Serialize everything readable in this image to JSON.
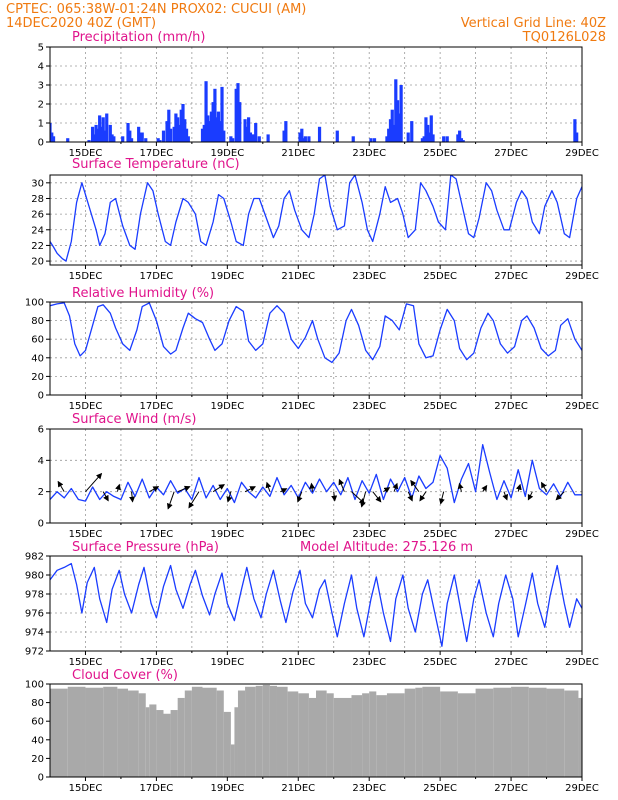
{
  "header": {
    "line1_left": "CPTEC:  065:38W-01:24N  PROX02: CUCUI (AM)",
    "line2_left": "14DEC2020 40Z (GMT)",
    "line2_right": "Vertical Grid Line: 40Z",
    "line3_right": "TQ0126L028"
  },
  "colors": {
    "header": "#f07a10",
    "title": "#e0148c",
    "series": "#1a3cff",
    "wind_arrow": "#000000",
    "cloud": "#a9a9a9",
    "grid": "#9a9a9a"
  },
  "x_axis": {
    "tick_labels": [
      "15DEC",
      "17DEC",
      "19DEC",
      "21DEC",
      "23DEC",
      "25DEC",
      "27DEC",
      "29DEC"
    ],
    "tick_days": [
      15,
      17,
      19,
      21,
      23,
      25,
      27,
      29
    ],
    "range_days": [
      14,
      29
    ],
    "minor_days": [
      16,
      18,
      20,
      22,
      24,
      26,
      28
    ]
  },
  "chart_data": [
    {
      "id": "precip",
      "type": "bar",
      "title": "Precipitation (mm/h)",
      "ylim": [
        0,
        5
      ],
      "yticks": [
        0,
        1,
        2,
        3,
        4,
        5
      ],
      "grid": true,
      "x_days": [
        14.0,
        14.05,
        14.1,
        14.5,
        15.1,
        15.2,
        15.25,
        15.3,
        15.35,
        15.4,
        15.45,
        15.5,
        15.55,
        15.6,
        15.7,
        15.75,
        15.8,
        16.05,
        16.2,
        16.25,
        16.3,
        16.5,
        16.55,
        16.6,
        16.7,
        17.05,
        17.1,
        17.2,
        17.3,
        17.35,
        17.4,
        17.5,
        17.55,
        17.6,
        17.65,
        17.7,
        17.75,
        17.8,
        17.85,
        17.9,
        18.3,
        18.35,
        18.4,
        18.45,
        18.5,
        18.55,
        18.6,
        18.65,
        18.7,
        18.75,
        18.8,
        18.85,
        18.9,
        19.1,
        19.15,
        19.25,
        19.3,
        19.35,
        19.5,
        19.55,
        19.6,
        19.65,
        19.7,
        19.75,
        19.8,
        19.9,
        20.15,
        20.6,
        20.65,
        21.05,
        21.1,
        21.15,
        21.2,
        21.3,
        21.6,
        22.1,
        22.55,
        23.05,
        23.15,
        23.5,
        23.55,
        23.6,
        23.65,
        23.7,
        23.75,
        23.8,
        23.85,
        23.9,
        24.1,
        24.2,
        24.5,
        24.55,
        24.6,
        24.65,
        24.7,
        24.75,
        24.8,
        25.1,
        25.2,
        25.5,
        25.55,
        25.6,
        25.65,
        28.8,
        28.85
      ],
      "values": [
        1.0,
        0.5,
        0.3,
        0.2,
        0.1,
        0.8,
        0.4,
        0.9,
        0.7,
        1.4,
        0.8,
        1.3,
        0.6,
        1.5,
        0.9,
        0.4,
        0.3,
        0.3,
        1.0,
        0.6,
        0.2,
        0.8,
        0.5,
        0.5,
        0.2,
        0.2,
        0.1,
        0.6,
        1.1,
        1.7,
        0.7,
        0.8,
        1.5,
        1.3,
        0.9,
        1.7,
        2.0,
        1.2,
        0.7,
        0.3,
        0.7,
        0.9,
        3.2,
        1.4,
        1.1,
        1.6,
        2.1,
        2.8,
        1.3,
        1.6,
        1.1,
        2.9,
        0.6,
        0.3,
        0.2,
        2.8,
        3.1,
        2.1,
        1.2,
        0.8,
        1.3,
        0.5,
        0.4,
        0.4,
        1.0,
        0.3,
        0.4,
        0.6,
        1.1,
        0.5,
        0.7,
        0.2,
        0.3,
        0.3,
        0.8,
        0.6,
        0.3,
        0.2,
        0.2,
        0.3,
        0.7,
        1.2,
        1.7,
        0.9,
        3.3,
        2.2,
        1.5,
        3.0,
        0.5,
        1.1,
        0.2,
        0.3,
        1.3,
        0.9,
        0.5,
        1.4,
        0.4,
        0.3,
        0.3,
        0.4,
        0.6,
        0.2,
        0.1,
        1.2,
        0.5
      ]
    },
    {
      "id": "temp",
      "type": "line",
      "title": "Surface Temperature (nC)",
      "ylim": [
        19.5,
        31
      ],
      "yticks": [
        20,
        22,
        24,
        26,
        28,
        30
      ],
      "grid": true,
      "x_days": [
        14.0,
        14.1,
        14.2,
        14.35,
        14.45,
        14.6,
        14.75,
        14.9,
        15.1,
        15.3,
        15.4,
        15.55,
        15.7,
        15.85,
        16.05,
        16.25,
        16.4,
        16.55,
        16.75,
        16.9,
        17.05,
        17.25,
        17.4,
        17.55,
        17.75,
        17.9,
        18.1,
        18.25,
        18.4,
        18.6,
        18.75,
        18.9,
        19.1,
        19.25,
        19.45,
        19.6,
        19.75,
        19.9,
        20.1,
        20.3,
        20.45,
        20.6,
        20.75,
        20.9,
        21.1,
        21.3,
        21.45,
        21.6,
        21.75,
        21.9,
        22.1,
        22.3,
        22.45,
        22.6,
        22.8,
        22.95,
        23.1,
        23.3,
        23.45,
        23.6,
        23.8,
        23.95,
        24.1,
        24.3,
        24.45,
        24.6,
        24.8,
        24.95,
        25.15,
        25.3,
        25.45,
        25.6,
        25.8,
        25.95,
        26.1,
        26.3,
        26.45,
        26.6,
        26.8,
        26.95,
        27.15,
        27.3,
        27.45,
        27.6,
        27.8,
        27.95,
        28.15,
        28.3,
        28.5,
        28.65,
        28.85,
        29.0
      ],
      "values": [
        22.5,
        21.8,
        21.0,
        20.3,
        20.0,
        22.5,
        27.5,
        30.0,
        27.0,
        24.0,
        22.0,
        23.5,
        27.5,
        28.0,
        24.5,
        22.0,
        21.5,
        26.0,
        30.0,
        29.0,
        26.0,
        22.5,
        22.0,
        25.0,
        28.0,
        27.5,
        26.0,
        22.5,
        22.0,
        25.0,
        28.5,
        28.0,
        25.0,
        22.5,
        22.0,
        26.0,
        28.0,
        28.0,
        25.5,
        23.0,
        24.5,
        28.0,
        29.0,
        26.5,
        24.0,
        23.0,
        26.0,
        30.5,
        31.0,
        27.0,
        24.0,
        24.5,
        30.0,
        31.0,
        27.5,
        24.0,
        22.5,
        26.0,
        29.5,
        27.5,
        28.0,
        26.0,
        23.0,
        24.0,
        30.0,
        29.0,
        27.0,
        25.0,
        24.0,
        31.0,
        30.5,
        27.5,
        23.5,
        23.0,
        25.5,
        30.0,
        29.0,
        26.5,
        24.0,
        24.0,
        27.5,
        29.0,
        28.0,
        25.0,
        23.5,
        27.0,
        29.0,
        27.5,
        23.5,
        23.0,
        28.0,
        29.5
      ]
    },
    {
      "id": "rh",
      "type": "line",
      "title": "Relative Humidity (%)",
      "ylim": [
        0,
        100
      ],
      "yticks": [
        0,
        20,
        40,
        60,
        80,
        100
      ],
      "grid": true,
      "x_days": [
        14.0,
        14.2,
        14.4,
        14.55,
        14.7,
        14.85,
        15.0,
        15.2,
        15.35,
        15.5,
        15.7,
        15.85,
        16.05,
        16.25,
        16.45,
        16.6,
        16.8,
        17.0,
        17.2,
        17.4,
        17.55,
        17.75,
        17.9,
        18.1,
        18.3,
        18.5,
        18.65,
        18.85,
        19.05,
        19.25,
        19.45,
        19.6,
        19.8,
        20.0,
        20.2,
        20.4,
        20.6,
        20.8,
        21.0,
        21.2,
        21.4,
        21.55,
        21.75,
        21.95,
        22.15,
        22.35,
        22.5,
        22.7,
        22.9,
        23.1,
        23.3,
        23.45,
        23.65,
        23.85,
        24.05,
        24.25,
        24.4,
        24.6,
        24.8,
        25.0,
        25.2,
        25.4,
        25.55,
        25.75,
        25.95,
        26.15,
        26.35,
        26.5,
        26.7,
        26.9,
        27.1,
        27.3,
        27.45,
        27.65,
        27.85,
        28.05,
        28.25,
        28.4,
        28.6,
        28.8,
        29.0
      ],
      "values": [
        96,
        98,
        99,
        85,
        55,
        42,
        48,
        75,
        95,
        97,
        88,
        72,
        55,
        48,
        70,
        95,
        99,
        80,
        52,
        44,
        48,
        72,
        88,
        82,
        78,
        60,
        48,
        55,
        80,
        95,
        90,
        58,
        48,
        55,
        88,
        96,
        88,
        60,
        50,
        62,
        80,
        60,
        40,
        35,
        45,
        80,
        92,
        75,
        48,
        38,
        52,
        85,
        80,
        70,
        98,
        96,
        55,
        40,
        42,
        70,
        92,
        80,
        50,
        38,
        45,
        72,
        88,
        80,
        55,
        45,
        52,
        80,
        85,
        72,
        50,
        42,
        48,
        75,
        82,
        60,
        48
      ]
    },
    {
      "id": "wind",
      "type": "line",
      "title": "Surface Wind (m/s)",
      "ylim": [
        0,
        6
      ],
      "yticks": [
        0,
        2,
        4,
        6
      ],
      "grid": true,
      "x_days": [
        14.0,
        14.2,
        14.4,
        14.6,
        14.8,
        15.0,
        15.2,
        15.4,
        15.6,
        15.8,
        16.0,
        16.2,
        16.4,
        16.6,
        16.8,
        17.0,
        17.2,
        17.4,
        17.6,
        17.8,
        18.0,
        18.2,
        18.4,
        18.6,
        18.8,
        19.0,
        19.2,
        19.4,
        19.6,
        19.8,
        20.0,
        20.2,
        20.4,
        20.6,
        20.8,
        21.0,
        21.2,
        21.4,
        21.6,
        21.8,
        22.0,
        22.2,
        22.4,
        22.6,
        22.8,
        23.0,
        23.2,
        23.4,
        23.6,
        23.8,
        24.0,
        24.2,
        24.4,
        24.6,
        24.8,
        25.0,
        25.2,
        25.4,
        25.6,
        25.8,
        26.0,
        26.2,
        26.4,
        26.6,
        26.8,
        27.0,
        27.2,
        27.4,
        27.6,
        27.8,
        28.0,
        28.2,
        28.4,
        28.6,
        28.8,
        29.0
      ],
      "values": [
        1.5,
        2.0,
        1.6,
        2.2,
        1.5,
        1.4,
        2.3,
        1.5,
        2.0,
        1.7,
        1.5,
        2.6,
        1.7,
        2.8,
        1.6,
        2.3,
        1.8,
        2.7,
        1.9,
        2.2,
        1.5,
        2.9,
        1.6,
        2.4,
        1.5,
        2.2,
        1.3,
        2.6,
        2.0,
        1.6,
        2.3,
        1.7,
        2.9,
        1.8,
        2.4,
        1.6,
        2.6,
        1.9,
        2.8,
        2.0,
        2.6,
        1.8,
        2.9,
        1.5,
        2.7,
        1.9,
        3.1,
        1.5,
        2.8,
        2.0,
        2.9,
        1.6,
        3.0,
        2.2,
        2.6,
        4.3,
        3.5,
        1.3,
        2.8,
        3.8,
        2.0,
        5.0,
        3.2,
        1.5,
        2.7,
        1.6,
        3.4,
        1.7,
        4.0,
        2.2,
        1.8,
        2.5,
        1.7,
        2.6,
        1.8,
        1.8
      ],
      "arrows": [
        {
          "day": 14.4,
          "u": -0.6,
          "v": 1.0
        },
        {
          "day": 15.0,
          "u": 1.6,
          "v": 1.8
        },
        {
          "day": 15.5,
          "u": 0.5,
          "v": -0.9
        },
        {
          "day": 15.9,
          "u": 0.2,
          "v": 0.7
        },
        {
          "day": 16.3,
          "u": 0.1,
          "v": -1.0
        },
        {
          "day": 16.8,
          "u": 0.9,
          "v": 0.5
        },
        {
          "day": 17.5,
          "u": -0.6,
          "v": -1.7
        },
        {
          "day": 17.6,
          "u": 1.2,
          "v": 0.5
        },
        {
          "day": 18.2,
          "u": -1.0,
          "v": -1.6
        },
        {
          "day": 18.6,
          "u": 1.1,
          "v": 0.7
        },
        {
          "day": 19.1,
          "u": -0.3,
          "v": -1.0
        },
        {
          "day": 19.5,
          "u": 1.0,
          "v": 0.5
        },
        {
          "day": 20.2,
          "u": -0.3,
          "v": 0.9
        },
        {
          "day": 20.5,
          "u": 0.6,
          "v": 0.3
        },
        {
          "day": 21.1,
          "u": -0.4,
          "v": -1.0
        },
        {
          "day": 21.4,
          "u": -0.1,
          "v": 0.8
        },
        {
          "day": 22.0,
          "u": 0.1,
          "v": -0.9
        },
        {
          "day": 22.3,
          "u": -0.5,
          "v": 1.2
        },
        {
          "day": 22.5,
          "u": 1.3,
          "v": -1.2
        },
        {
          "day": 22.9,
          "u": -0.4,
          "v": -1.5
        },
        {
          "day": 23.1,
          "u": 0.8,
          "v": -1.0
        },
        {
          "day": 23.4,
          "u": 0.6,
          "v": 0.4
        },
        {
          "day": 23.7,
          "u": 0.3,
          "v": 0.8
        },
        {
          "day": 24.1,
          "u": 0.4,
          "v": -0.9
        },
        {
          "day": 24.4,
          "u": -0.8,
          "v": 1.1
        },
        {
          "day": 24.6,
          "u": -0.6,
          "v": -0.9
        },
        {
          "day": 25.1,
          "u": -0.3,
          "v": -1.2
        },
        {
          "day": 25.6,
          "u": -0.2,
          "v": 0.8
        },
        {
          "day": 26.2,
          "u": 0.4,
          "v": 0.6
        },
        {
          "day": 26.8,
          "u": 0.3,
          "v": -0.8
        },
        {
          "day": 27.2,
          "u": 0.2,
          "v": 0.7
        },
        {
          "day": 27.6,
          "u": -0.4,
          "v": -0.8
        },
        {
          "day": 28.0,
          "u": -0.5,
          "v": 0.9
        },
        {
          "day": 28.5,
          "u": -0.8,
          "v": -0.8
        }
      ]
    },
    {
      "id": "pres",
      "type": "line",
      "title": "Surface Pressure (hPa)",
      "annotation": "Model Altitude: 275.126 m",
      "ylim": [
        972,
        982
      ],
      "yticks": [
        972,
        974,
        976,
        978,
        980,
        982
      ],
      "grid": true,
      "x_days": [
        14.0,
        14.2,
        14.4,
        14.6,
        14.75,
        14.9,
        15.05,
        15.25,
        15.4,
        15.6,
        15.75,
        15.95,
        16.1,
        16.3,
        16.5,
        16.65,
        16.85,
        17.0,
        17.2,
        17.4,
        17.55,
        17.75,
        17.95,
        18.1,
        18.3,
        18.5,
        18.65,
        18.85,
        19.0,
        19.2,
        19.4,
        19.55,
        19.75,
        19.95,
        20.1,
        20.3,
        20.5,
        20.65,
        20.85,
        21.05,
        21.2,
        21.4,
        21.6,
        21.75,
        21.95,
        22.1,
        22.3,
        22.5,
        22.65,
        22.85,
        23.05,
        23.2,
        23.4,
        23.6,
        23.75,
        23.95,
        24.1,
        24.3,
        24.5,
        24.65,
        24.85,
        25.05,
        25.2,
        25.4,
        25.6,
        25.75,
        25.95,
        26.1,
        26.3,
        26.5,
        26.65,
        26.85,
        27.05,
        27.2,
        27.4,
        27.6,
        27.75,
        27.95,
        28.1,
        28.3,
        28.5,
        28.65,
        28.85,
        29.0
      ],
      "values": [
        979.5,
        980.5,
        980.8,
        981.2,
        979.0,
        976.0,
        979.2,
        980.8,
        977.5,
        975.0,
        978.5,
        980.5,
        978.0,
        976.0,
        979.0,
        980.8,
        977.0,
        975.5,
        978.8,
        981.0,
        978.5,
        976.5,
        979.0,
        980.5,
        977.8,
        975.8,
        978.0,
        980.2,
        977.0,
        975.2,
        978.5,
        980.8,
        977.5,
        975.5,
        978.0,
        980.5,
        977.2,
        975.0,
        978.2,
        980.5,
        977.0,
        975.5,
        978.5,
        979.5,
        976.0,
        973.5,
        977.0,
        980.0,
        976.5,
        973.5,
        977.5,
        979.8,
        976.0,
        973.0,
        977.5,
        980.0,
        976.5,
        974.0,
        978.0,
        979.5,
        976.0,
        972.5,
        977.0,
        980.0,
        976.0,
        973.0,
        977.5,
        979.5,
        976.0,
        973.5,
        977.0,
        980.0,
        977.5,
        973.5,
        976.8,
        980.2,
        977.0,
        974.5,
        977.8,
        981.0,
        977.0,
        974.5,
        977.5,
        976.5
      ]
    },
    {
      "id": "cloud",
      "type": "area",
      "title": "Cloud Cover (%)",
      "ylim": [
        0,
        100
      ],
      "yticks": [
        0,
        20,
        40,
        60,
        80,
        100
      ],
      "grid": false,
      "x_days": [
        14.0,
        14.5,
        15.0,
        15.5,
        15.9,
        16.2,
        16.5,
        16.7,
        16.8,
        17.0,
        17.2,
        17.4,
        17.6,
        17.8,
        18.0,
        18.3,
        18.7,
        18.9,
        19.1,
        19.2,
        19.3,
        19.5,
        19.8,
        20.0,
        20.2,
        20.4,
        20.7,
        21.0,
        21.3,
        21.5,
        21.8,
        22.0,
        22.5,
        22.8,
        23.0,
        23.2,
        23.5,
        24.0,
        24.3,
        24.5,
        25.0,
        25.5,
        26.0,
        26.5,
        27.0,
        27.5,
        28.0,
        28.5,
        28.9,
        29.0
      ],
      "values": [
        95,
        97,
        96,
        97,
        95,
        93,
        90,
        75,
        78,
        72,
        68,
        72,
        85,
        93,
        97,
        96,
        93,
        70,
        35,
        75,
        93,
        97,
        98,
        99,
        98,
        97,
        92,
        90,
        85,
        93,
        90,
        85,
        88,
        90,
        92,
        88,
        90,
        95,
        96,
        97,
        92,
        90,
        95,
        96,
        97,
        96,
        95,
        93,
        85,
        80
      ]
    }
  ]
}
